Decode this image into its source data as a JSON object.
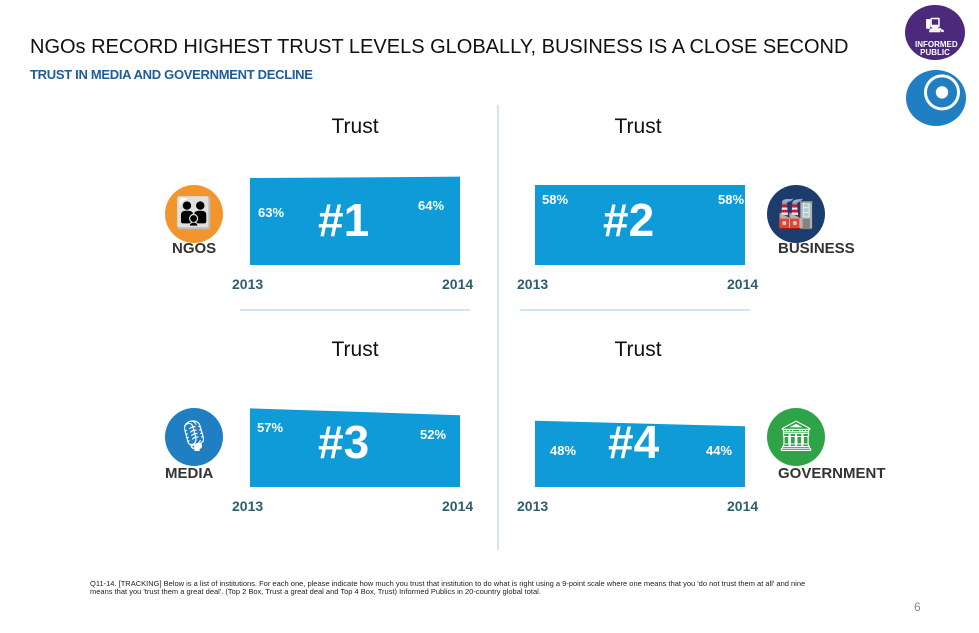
{
  "header": {
    "title": "NGOs RECORD HIGHEST TRUST LEVELS GLOBALLY, BUSINESS IS A CLOSE SECOND",
    "subtitle": "TRUST IN MEDIA AND GOVERNMENT DECLINE"
  },
  "logo": {
    "text": "INFORMED PUBLIC"
  },
  "colors": {
    "bar": "#0e9bd7",
    "ngos": "#f3952d",
    "business": "#1d3c6e",
    "media": "#1f7fc2",
    "government": "#2fa347"
  },
  "panels": [
    {
      "label": "NGOS",
      "trust": "Trust",
      "rank": "#1",
      "year_start": "2013",
      "year_end": "2014",
      "v2013": 63,
      "v2014": 64,
      "p2013": "63%",
      "p2014": "64%"
    },
    {
      "label": "BUSINESS",
      "trust": "Trust",
      "rank": "#2",
      "year_start": "2013",
      "year_end": "2014",
      "v2013": 58,
      "v2014": 58,
      "p2013": "58%",
      "p2014": "58%"
    },
    {
      "label": "MEDIA",
      "trust": "Trust",
      "rank": "#3",
      "year_start": "2013",
      "year_end": "2014",
      "v2013": 57,
      "v2014": 52,
      "p2013": "57%",
      "p2014": "52%"
    },
    {
      "label": "GOVERNMENT",
      "trust": "Trust",
      "rank": "#4",
      "year_start": "2013",
      "year_end": "2014",
      "v2013": 48,
      "v2014": 44,
      "p2013": "48%",
      "p2014": "44%"
    }
  ],
  "footnote": "Q11-14. [TRACKING] Below is a list of institutions. For each one, please indicate how much you trust that institution to do what is right using a 9-point scale where one means that you 'do not trust them at all' and nine means that you 'trust them a great deal'. (Top 2 Box, Trust a great deal and Top 4 Box, Trust) Informed Publics in 20-country global total.",
  "page_number": "6"
}
